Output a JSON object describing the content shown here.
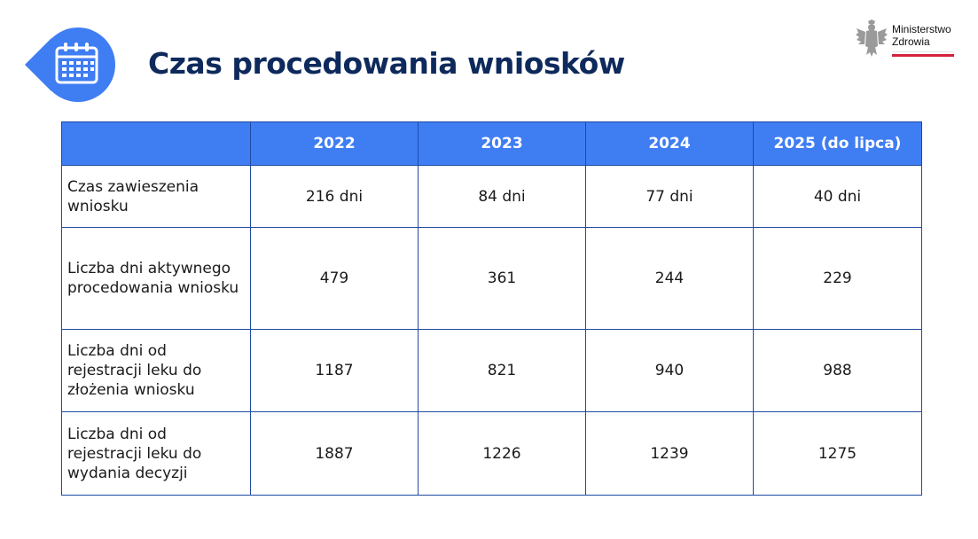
{
  "header": {
    "title": "Czas procedowania wniosków",
    "icon": "calendar-icon",
    "accent_color": "#3f7df3",
    "title_color": "#0e2a5c"
  },
  "logo": {
    "line1": "Ministerstwo",
    "line2": "Zdrowia",
    "icon": "eagle-emblem-icon"
  },
  "table": {
    "columns": [
      "",
      "2022",
      "2023",
      "2024",
      "2025 (do lipca)"
    ],
    "rows": [
      {
        "label": "Czas zawieszenia wniosku",
        "values": [
          "216 dni",
          "84 dni",
          "77 dni",
          "40 dni"
        ]
      },
      {
        "label": "Liczba dni aktywnego procedowania wniosku",
        "values": [
          "479",
          "361",
          "244",
          "229"
        ]
      },
      {
        "label": "Liczba dni od rejestracji leku do złożenia wniosku",
        "values": [
          "1187",
          "821",
          "940",
          "988"
        ]
      },
      {
        "label": "Liczba dni od rejestracji leku do wydania decyzji",
        "values": [
          "1887",
          "1226",
          "1239",
          "1275"
        ]
      }
    ]
  }
}
